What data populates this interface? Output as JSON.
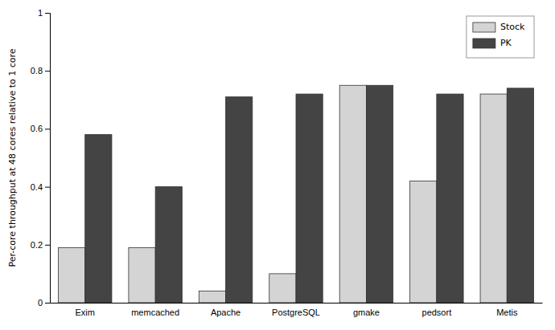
{
  "chart_data": {
    "type": "bar",
    "categories": [
      "Exim",
      "memcached",
      "Apache",
      "PostgreSQL",
      "gmake",
      "pedsort",
      "Metis"
    ],
    "series": [
      {
        "name": "Stock",
        "color": "#d4d4d4",
        "values": [
          0.19,
          0.19,
          0.04,
          0.1,
          0.75,
          0.42,
          0.72
        ]
      },
      {
        "name": "PK",
        "color": "#444444",
        "values": [
          0.58,
          0.4,
          0.71,
          0.72,
          0.75,
          0.72,
          0.74
        ]
      }
    ],
    "y_label": "Per-core throughput at 48 cores relative to 1 core",
    "ylim": [
      0,
      1
    ],
    "yticks": [
      0,
      0.2,
      0.4,
      0.6,
      0.8,
      1
    ],
    "grid": false,
    "legend": "top-right"
  }
}
